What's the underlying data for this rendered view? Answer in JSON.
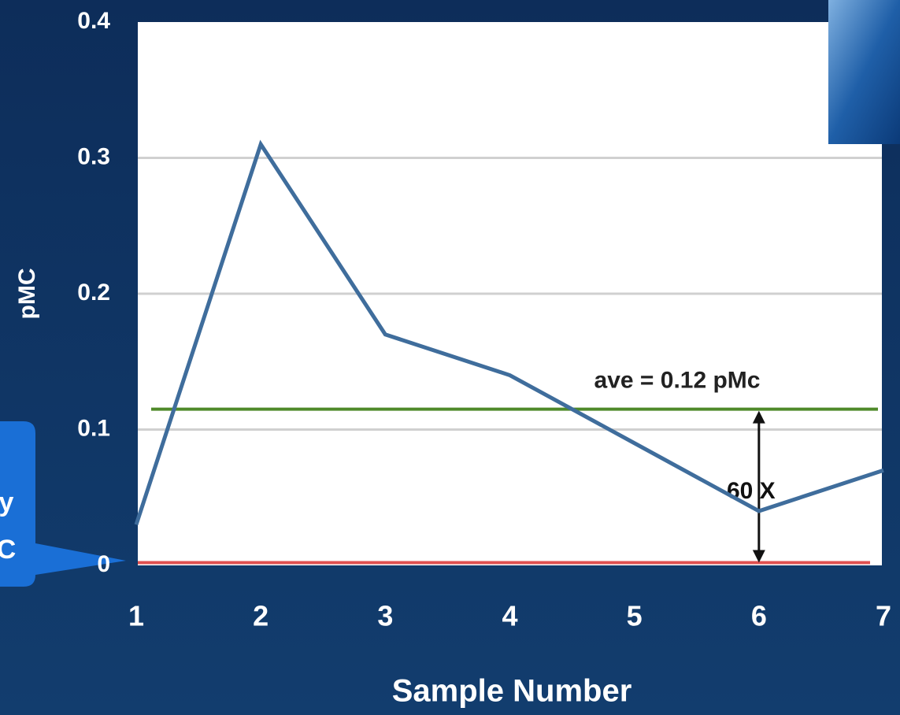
{
  "chart_data": {
    "type": "line",
    "x_label": "Sample Number",
    "y_label": "pMC",
    "x": [
      1,
      2,
      3,
      4,
      5,
      6,
      7
    ],
    "series": [
      {
        "name": "pMC",
        "color": "#3f6d9c",
        "values": [
          0.03,
          0.31,
          0.17,
          0.14,
          0.09,
          0.04,
          0.07
        ]
      }
    ],
    "xlim": [
      1,
      7
    ],
    "xticks": [
      1,
      2,
      3,
      4,
      5,
      6,
      7
    ],
    "ylim": [
      0,
      0.4
    ],
    "yticks": [
      0,
      0.1,
      0.2,
      0.3,
      0.4
    ],
    "grid": true,
    "reference_lines": [
      {
        "value": 0.115,
        "color": "#4f8a2a",
        "label": "ave = 0.12 pMc"
      },
      {
        "value": 0.002,
        "color": "#e05050"
      }
    ],
    "annotation": "60 X",
    "callout_text": [
      "y",
      "C"
    ]
  }
}
